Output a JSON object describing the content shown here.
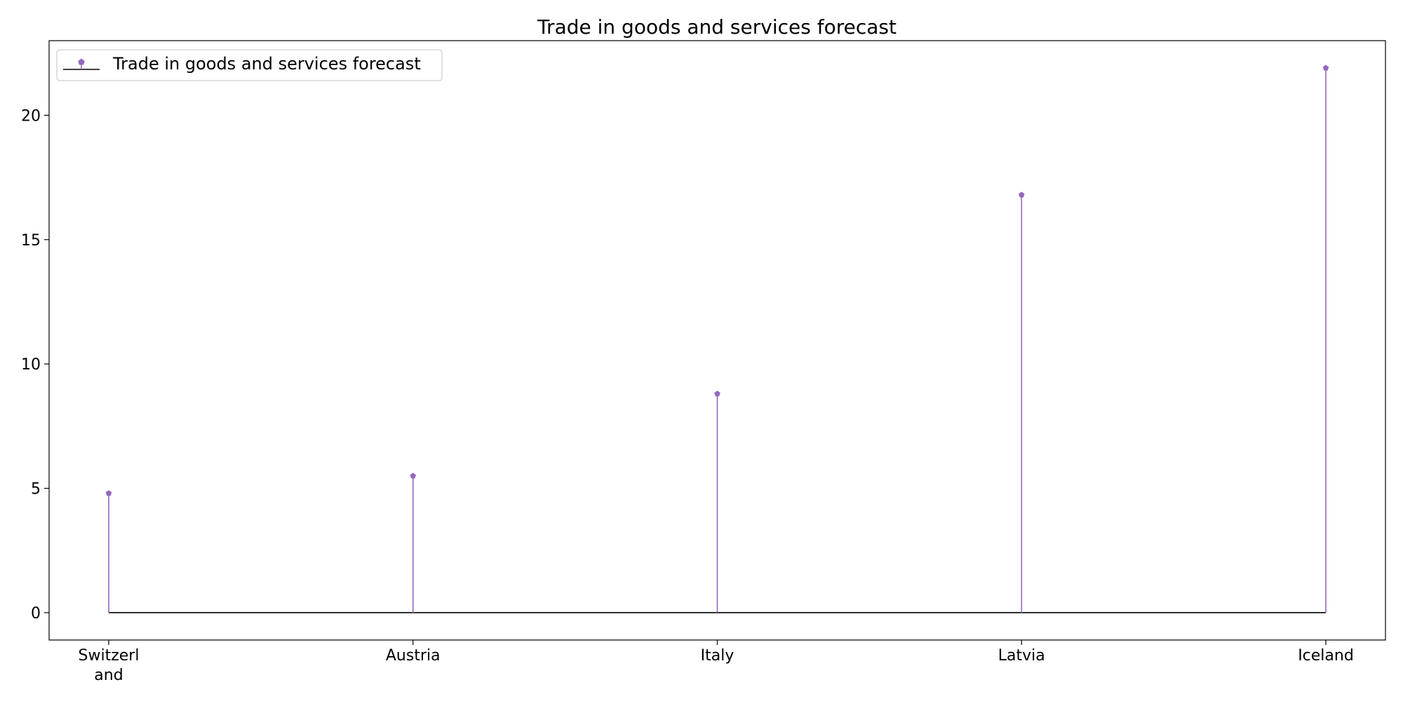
{
  "chart_data": {
    "type": "stem",
    "title": "Trade in goods and services forecast",
    "xlabel": "",
    "ylabel": "",
    "categories": [
      [
        "Switzerl",
        "and"
      ],
      [
        "Austria"
      ],
      [
        "Italy"
      ],
      [
        "Latvia"
      ],
      [
        "Iceland"
      ]
    ],
    "series": [
      {
        "name": "Trade in goods and services forecast",
        "values": [
          4.8,
          5.5,
          8.8,
          16.8,
          21.9
        ],
        "color": "#9467bd"
      }
    ],
    "baseline": 0,
    "baseline_color": "#000000",
    "yticks": [
      0,
      5,
      10,
      15,
      20
    ],
    "ylim": [
      -1.1,
      23.0
    ],
    "grid": false,
    "legend_position": "top-left"
  }
}
